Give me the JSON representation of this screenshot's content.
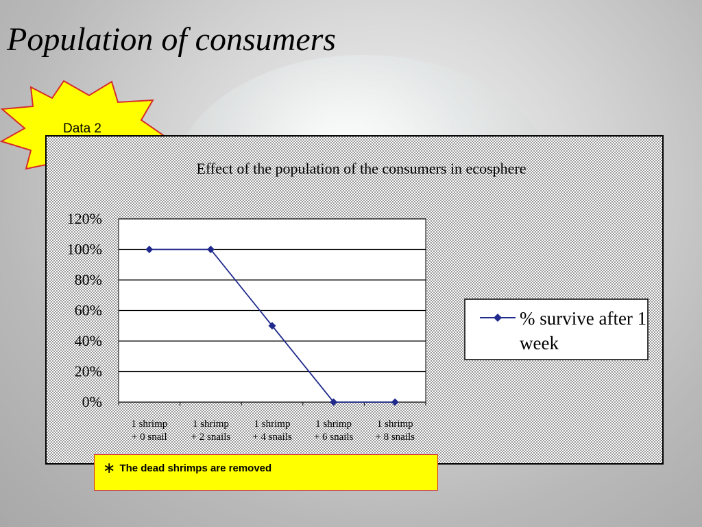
{
  "slide": {
    "title": "Population of consumers",
    "badge": "Data 2",
    "note_marker": "∗",
    "note": "The dead shrimps are removed"
  },
  "colors": {
    "series": "#1f2a8c",
    "badge_fill": "#ffff00",
    "badge_stroke": "#d62b2b",
    "note_fill": "#ffff00"
  },
  "chart_data": {
    "type": "line",
    "title": "Effect of the population of the consumers in ecosphere",
    "xlabel": "",
    "ylabel": "",
    "categories": [
      [
        "1 shrimp",
        "+ 0 snail"
      ],
      [
        "1 shrimp",
        "+ 2 snails"
      ],
      [
        "1 shrimp",
        "+ 4 snails"
      ],
      [
        "1 shrimp",
        "+ 6 snails"
      ],
      [
        "1 shrimp",
        "+ 8 snails"
      ]
    ],
    "series": [
      {
        "name": "% survive after 1 week",
        "values": [
          100,
          100,
          50,
          0,
          0
        ],
        "marker": "diamond"
      }
    ],
    "ylim": [
      0,
      120
    ],
    "yticks": [
      "0%",
      "20%",
      "40%",
      "60%",
      "80%",
      "100%",
      "120%"
    ],
    "ytick_values": [
      0,
      20,
      40,
      60,
      80,
      100,
      120
    ],
    "grid": true,
    "legend": "right"
  }
}
